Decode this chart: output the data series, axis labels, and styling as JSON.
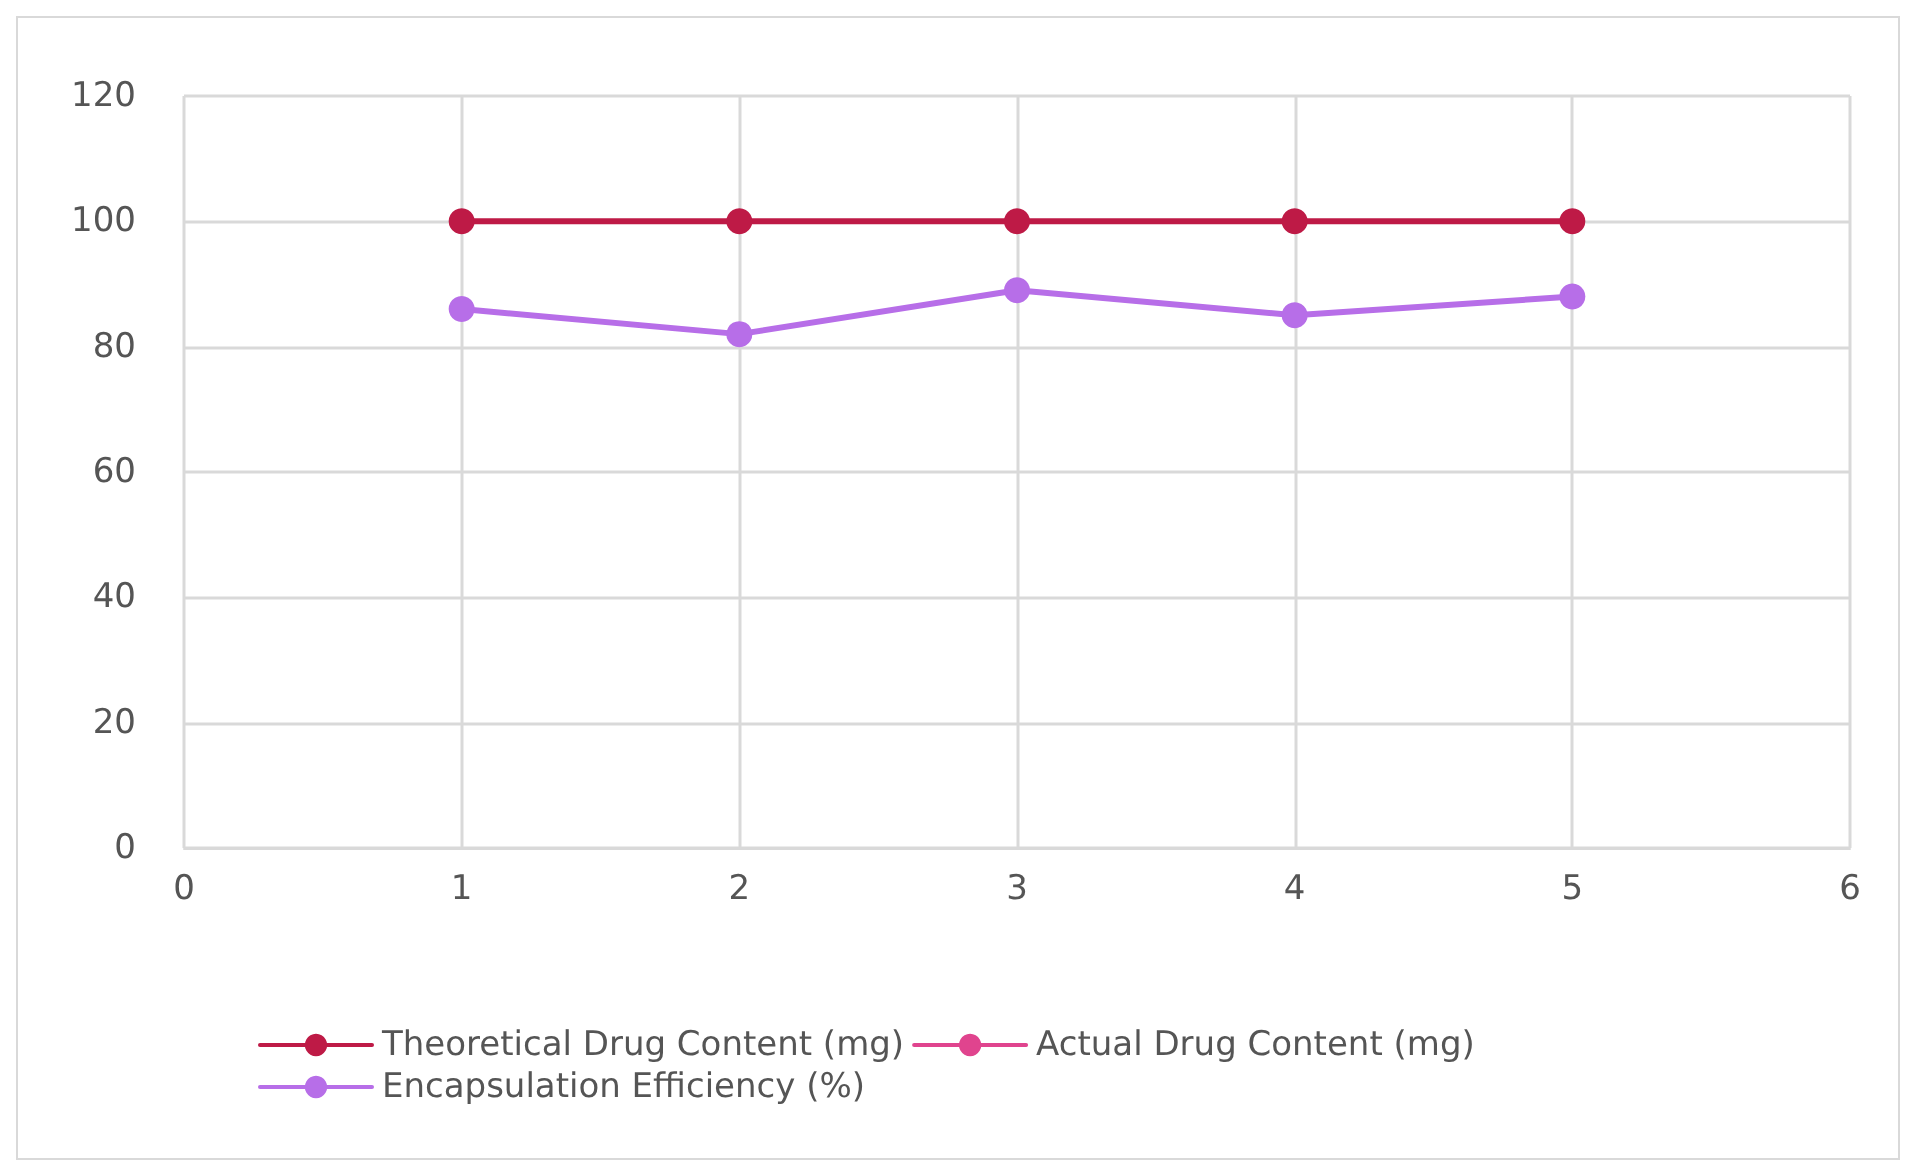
{
  "chart_data": {
    "type": "line",
    "x": [
      1,
      2,
      3,
      4,
      5
    ],
    "xlim": [
      0,
      6
    ],
    "xticks": [
      0,
      1,
      2,
      3,
      4,
      5,
      6
    ],
    "ylim": [
      0,
      120
    ],
    "yticks": [
      0,
      20,
      40,
      60,
      80,
      100,
      120
    ],
    "grid": true,
    "legend": "bottom",
    "marker": "circle",
    "line_style": "solid",
    "series": [
      {
        "name": "Theoretical Drug Content (mg)",
        "color": "#be1a46",
        "values": [
          100,
          100,
          100,
          100,
          100
        ]
      },
      {
        "name": "Actual Drug Content (mg)",
        "color": "#e0448e",
        "values": [
          null,
          null,
          null,
          null,
          null
        ]
      },
      {
        "name": "Encapsulation Efficiency (%)",
        "color": "#b76ee8",
        "values": [
          86,
          82,
          89,
          85,
          88
        ]
      }
    ]
  }
}
